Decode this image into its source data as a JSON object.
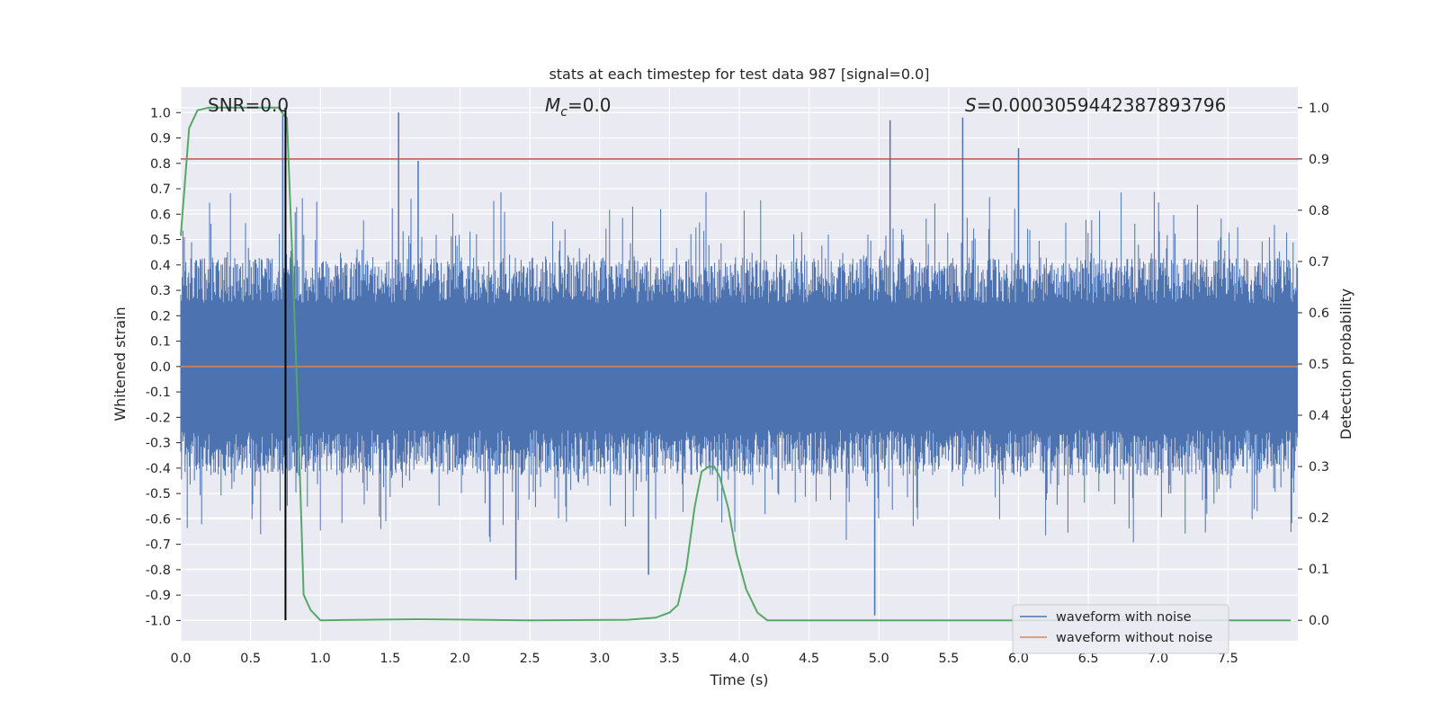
{
  "chart_data": {
    "type": "line",
    "title": "stats at each timestep for test data 987 [signal=0.0]",
    "xlabel": "Time (s)",
    "ylabel": "Whitened strain",
    "ylabel_right": "Detection probability",
    "xlim": [
      0.0,
      8.0
    ],
    "ylim": [
      -1.08,
      1.1
    ],
    "ylim_right": [
      -0.04,
      1.04
    ],
    "x_ticks": [
      "0.0",
      "0.5",
      "1.0",
      "1.5",
      "2.0",
      "2.5",
      "3.0",
      "3.5",
      "4.0",
      "4.5",
      "5.0",
      "5.5",
      "6.0",
      "6.5",
      "7.0",
      "7.5"
    ],
    "y_ticks": [
      "1.0",
      "0.9",
      "0.8",
      "0.7",
      "0.6",
      "0.5",
      "0.4",
      "0.3",
      "0.2",
      "0.1",
      "0.0",
      "-0.1",
      "-0.2",
      "-0.3",
      "-0.4",
      "-0.5",
      "-0.6",
      "-0.7",
      "-0.8",
      "-0.9",
      "-1.0"
    ],
    "y_ticks_right": [
      "1.0",
      "0.9",
      "0.8",
      "0.7",
      "0.6",
      "0.5",
      "0.4",
      "0.3",
      "0.2",
      "0.1",
      "0.0"
    ],
    "annotations": {
      "snr": "SNR=0.0",
      "mc_symbol": "M",
      "mc_sub": "c",
      "mc_value": "=0.0",
      "s_symbol": "S",
      "s_value": "=0.0003059442387893796"
    },
    "threshold": {
      "value": 0.9,
      "axis": "right",
      "color": "#c44e52"
    },
    "marker_line": {
      "x": 0.75,
      "color": "#000000"
    },
    "legend": {
      "position": "lower-right",
      "entries": [
        {
          "label": "waveform with noise",
          "color": "#4c72b0"
        },
        {
          "label": "waveform without noise",
          "color": "#dd8452"
        }
      ]
    },
    "series": [
      {
        "name": "waveform with noise",
        "color": "#4c72b0",
        "axis": "left",
        "note": "dense noise trace, envelope roughly ±0.4 with spikes",
        "spikes": [
          {
            "x": 1.56,
            "y": 1.0
          },
          {
            "x": 5.08,
            "y": 0.97
          },
          {
            "x": 5.6,
            "y": 0.98
          },
          {
            "x": 1.7,
            "y": 0.81
          },
          {
            "x": 0.73,
            "y": 0.99
          },
          {
            "x": 4.97,
            "y": -0.98
          },
          {
            "x": 2.4,
            "y": -0.84
          },
          {
            "x": 3.35,
            "y": -0.82
          },
          {
            "x": 6.0,
            "y": 0.86
          }
        ]
      },
      {
        "name": "waveform without noise",
        "color": "#dd8452",
        "axis": "left",
        "x": [
          0.0,
          8.0
        ],
        "y": [
          0.0,
          0.0
        ]
      },
      {
        "name": "detection probability",
        "color": "#55a868",
        "axis": "right",
        "x": [
          0.0,
          0.06,
          0.12,
          0.2,
          0.35,
          0.55,
          0.7,
          0.74,
          0.76,
          0.8,
          0.84,
          0.88,
          0.93,
          1.0,
          1.7,
          2.5,
          3.2,
          3.4,
          3.5,
          3.56,
          3.62,
          3.68,
          3.73,
          3.78,
          3.82,
          3.86,
          3.92,
          3.98,
          4.05,
          4.13,
          4.2,
          4.6,
          5.0,
          6.0,
          7.0,
          7.95
        ],
        "y": [
          0.75,
          0.96,
          0.995,
          1.0,
          1.0,
          1.0,
          1.0,
          0.985,
          0.98,
          0.7,
          0.4,
          0.05,
          0.02,
          0.0,
          0.002,
          0.0,
          0.001,
          0.005,
          0.015,
          0.03,
          0.1,
          0.22,
          0.29,
          0.3,
          0.3,
          0.28,
          0.22,
          0.13,
          0.06,
          0.015,
          0.0,
          0.0,
          0.0,
          0.0,
          0.0,
          0.0
        ]
      }
    ]
  }
}
